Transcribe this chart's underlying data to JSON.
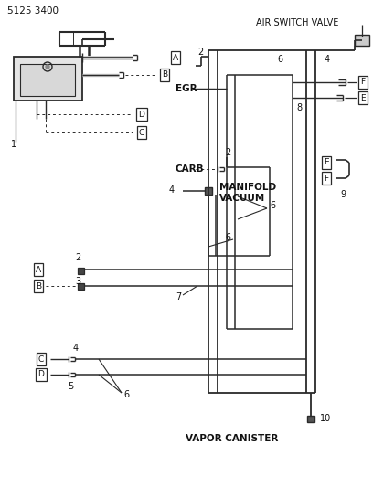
{
  "title": "5125 3400",
  "bg_color": "#ffffff",
  "line_color": "#2a2a2a",
  "text_color": "#111111",
  "labels": {
    "air_switch_valve": "AIR SWITCH VALVE",
    "egr": "EGR",
    "carb": "CARB",
    "manifold_vacuum_1": "MANIFOLD",
    "manifold_vacuum_2": "VACUUM",
    "vapor_canister": "VAPOR CANISTER"
  },
  "fig_width": 4.08,
  "fig_height": 5.33,
  "dpi": 100
}
